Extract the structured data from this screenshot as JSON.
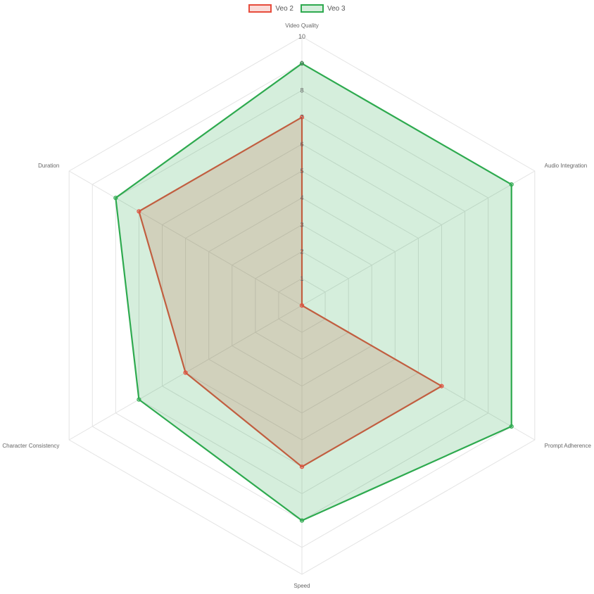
{
  "chart_data": {
    "type": "radar",
    "axes": [
      "Video Quality",
      "Audio Integration",
      "Prompt Adherence",
      "Speed",
      "Character Consistency",
      "Duration"
    ],
    "rlim": [
      0,
      10
    ],
    "ticks": [
      "1",
      "2",
      "3",
      "4",
      "5",
      "6",
      "7",
      "8",
      "9",
      "10"
    ],
    "legend_position": "top-center",
    "grid": true,
    "series": [
      {
        "name": "Veo 2",
        "values": [
          7,
          0,
          6,
          6,
          5,
          7
        ],
        "color": "#e74c3c",
        "fill": "rgba(231,76,60,0.2)"
      },
      {
        "name": "Veo 3",
        "values": [
          9,
          9,
          9,
          8,
          7,
          8
        ],
        "color": "#2eaa4f",
        "fill": "rgba(46,170,79,0.2)"
      }
    ]
  }
}
